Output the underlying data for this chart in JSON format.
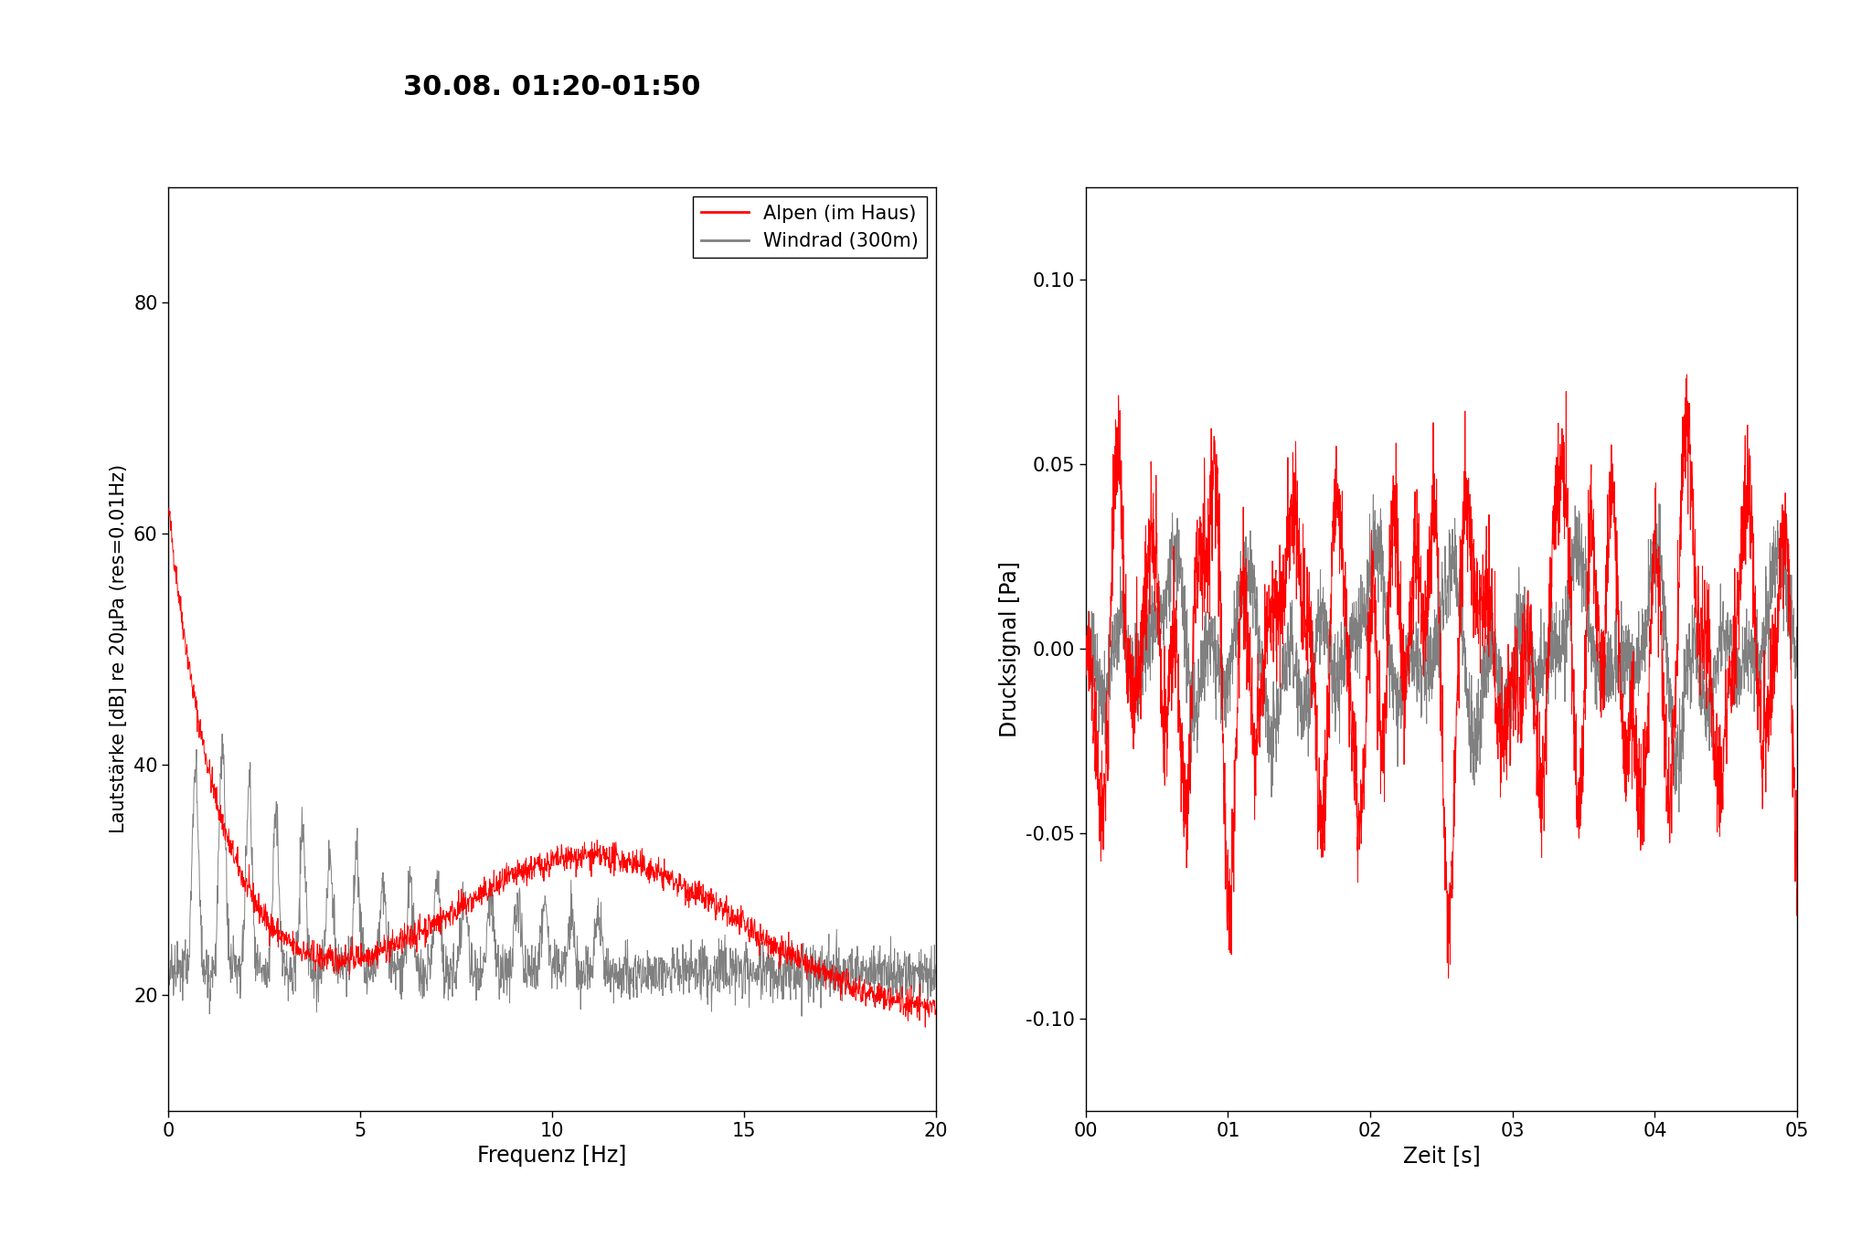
{
  "title": "30.08. 01:20-01:50",
  "title_fontsize": 22,
  "title_fontweight": "bold",
  "background_color": "#ffffff",
  "left_ylabel": "Lautstärke [dB] re 20µPa (res=0.01Hz)",
  "left_xlabel": "Frequenz [Hz]",
  "left_xlim": [
    0,
    20
  ],
  "left_ylim": [
    10,
    90
  ],
  "left_yticks": [
    20,
    40,
    60,
    80
  ],
  "left_xticks": [
    0,
    5,
    10,
    15,
    20
  ],
  "right_ylabel": "Drucksignal [Pa]",
  "right_xlabel": "Zeit [s]",
  "right_xlim": [
    0,
    5
  ],
  "right_ylim": [
    -0.125,
    0.125
  ],
  "right_yticks": [
    -0.1,
    -0.05,
    0.0,
    0.05,
    0.1
  ],
  "right_xticks": [
    0,
    1,
    2,
    3,
    4,
    5
  ],
  "right_xticklabels": [
    "00",
    "01",
    "02",
    "03",
    "04",
    "05"
  ],
  "legend_labels": [
    "Alpen (im Haus)",
    "Windrad (300m)"
  ],
  "red_color": "#ff0000",
  "gray_color": "#808080",
  "line_width": 0.7,
  "axis_fontsize": 17,
  "tick_fontsize": 15,
  "legend_fontsize": 15
}
